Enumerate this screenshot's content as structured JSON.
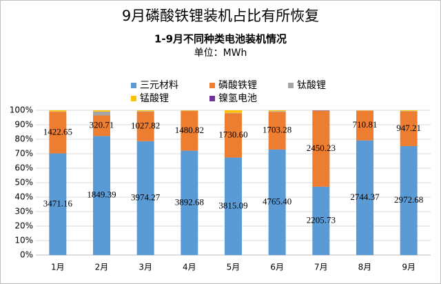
{
  "chart_data": {
    "type": "stacked_percent_bar",
    "title": "9月磷酸铁锂装机占比有所恢复",
    "subtitle": "1-9月不同种类电池装机情况",
    "unit_label": "单位：MWh",
    "categories": [
      "1月",
      "2月",
      "3月",
      "4月",
      "5月",
      "6月",
      "7月",
      "8月",
      "9月"
    ],
    "series": [
      {
        "name": "三元材料",
        "color": "#5b9bd5",
        "values": [
          3471.16,
          1849.39,
          3974.27,
          3892.68,
          3815.09,
          4765.4,
          2205.73,
          2744.37,
          2972.68
        ],
        "value_labels": [
          "3471.16",
          "1849.39",
          "3974.27",
          "3892.68",
          "3815.09",
          "4765.40",
          "2205.73",
          "2744.37",
          "2972.68"
        ]
      },
      {
        "name": "磷酸铁锂",
        "color": "#ed7d31",
        "values": [
          1422.65,
          320.71,
          1027.82,
          1480.82,
          1730.6,
          1703.28,
          2450.23,
          710.81,
          947.21
        ],
        "value_labels": [
          "1422.65",
          "320.71",
          "1027.82",
          "1480.82",
          "1730.60",
          "1703.28",
          "2450.23",
          "710.81",
          "947.21"
        ]
      },
      {
        "name": "钛酸锂",
        "color": "#a5a5a5",
        "values": [
          10,
          60,
          20,
          10,
          20,
          30,
          5,
          5,
          10
        ]
      },
      {
        "name": "锰酸锂",
        "color": "#ffc000",
        "values": [
          40,
          20,
          30,
          15,
          100,
          40,
          5,
          5,
          20
        ]
      },
      {
        "name": "镍氢电池",
        "color": "#7030a0",
        "values": [
          0,
          0,
          0,
          0,
          0,
          0,
          10,
          0,
          0
        ]
      }
    ],
    "ylim": [
      0,
      100
    ],
    "yticks": [
      {
        "value": 0,
        "label": "0%"
      },
      {
        "value": 10,
        "label": "10%"
      },
      {
        "value": 20,
        "label": "20%"
      },
      {
        "value": 30,
        "label": "30%"
      },
      {
        "value": 40,
        "label": "40%"
      },
      {
        "value": 50,
        "label": "50%"
      },
      {
        "value": 60,
        "label": "60%"
      },
      {
        "value": 70,
        "label": "70%"
      },
      {
        "value": 80,
        "label": "80%"
      },
      {
        "value": 90,
        "label": "90%"
      },
      {
        "value": 100,
        "label": "100%"
      }
    ],
    "grid": true
  }
}
